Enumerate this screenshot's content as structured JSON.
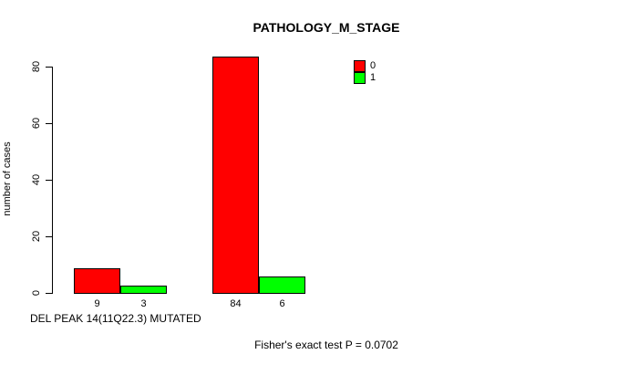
{
  "chart_data": {
    "type": "bar",
    "title": "PATHOLOGY_M_STAGE",
    "xlabel": "DEL PEAK 14(11Q22.3) MUTATED",
    "ylabel": "number of cases",
    "ylim": [
      0,
      84
    ],
    "yticks": [
      0,
      20,
      40,
      60,
      80
    ],
    "grid": false,
    "legend_position": "top-right",
    "series_colors": {
      "0": "#ff0000",
      "1": "#00ff00"
    },
    "groups": [
      {
        "bars": [
          {
            "series": "0",
            "value": 9,
            "label": "9",
            "color": "#ff0000"
          },
          {
            "series": "1",
            "value": 3,
            "label": "3",
            "color": "#00ff00"
          }
        ]
      },
      {
        "bars": [
          {
            "series": "0",
            "value": 84,
            "label": "84",
            "color": "#ff0000"
          },
          {
            "series": "1",
            "value": 6,
            "label": "6",
            "color": "#00ff00"
          }
        ]
      }
    ],
    "legend": {
      "entries": [
        {
          "label": "0",
          "color": "#ff0000"
        },
        {
          "label": "1",
          "color": "#00ff00"
        }
      ]
    },
    "annotation": "Fisher's exact test P = 0.0702"
  }
}
